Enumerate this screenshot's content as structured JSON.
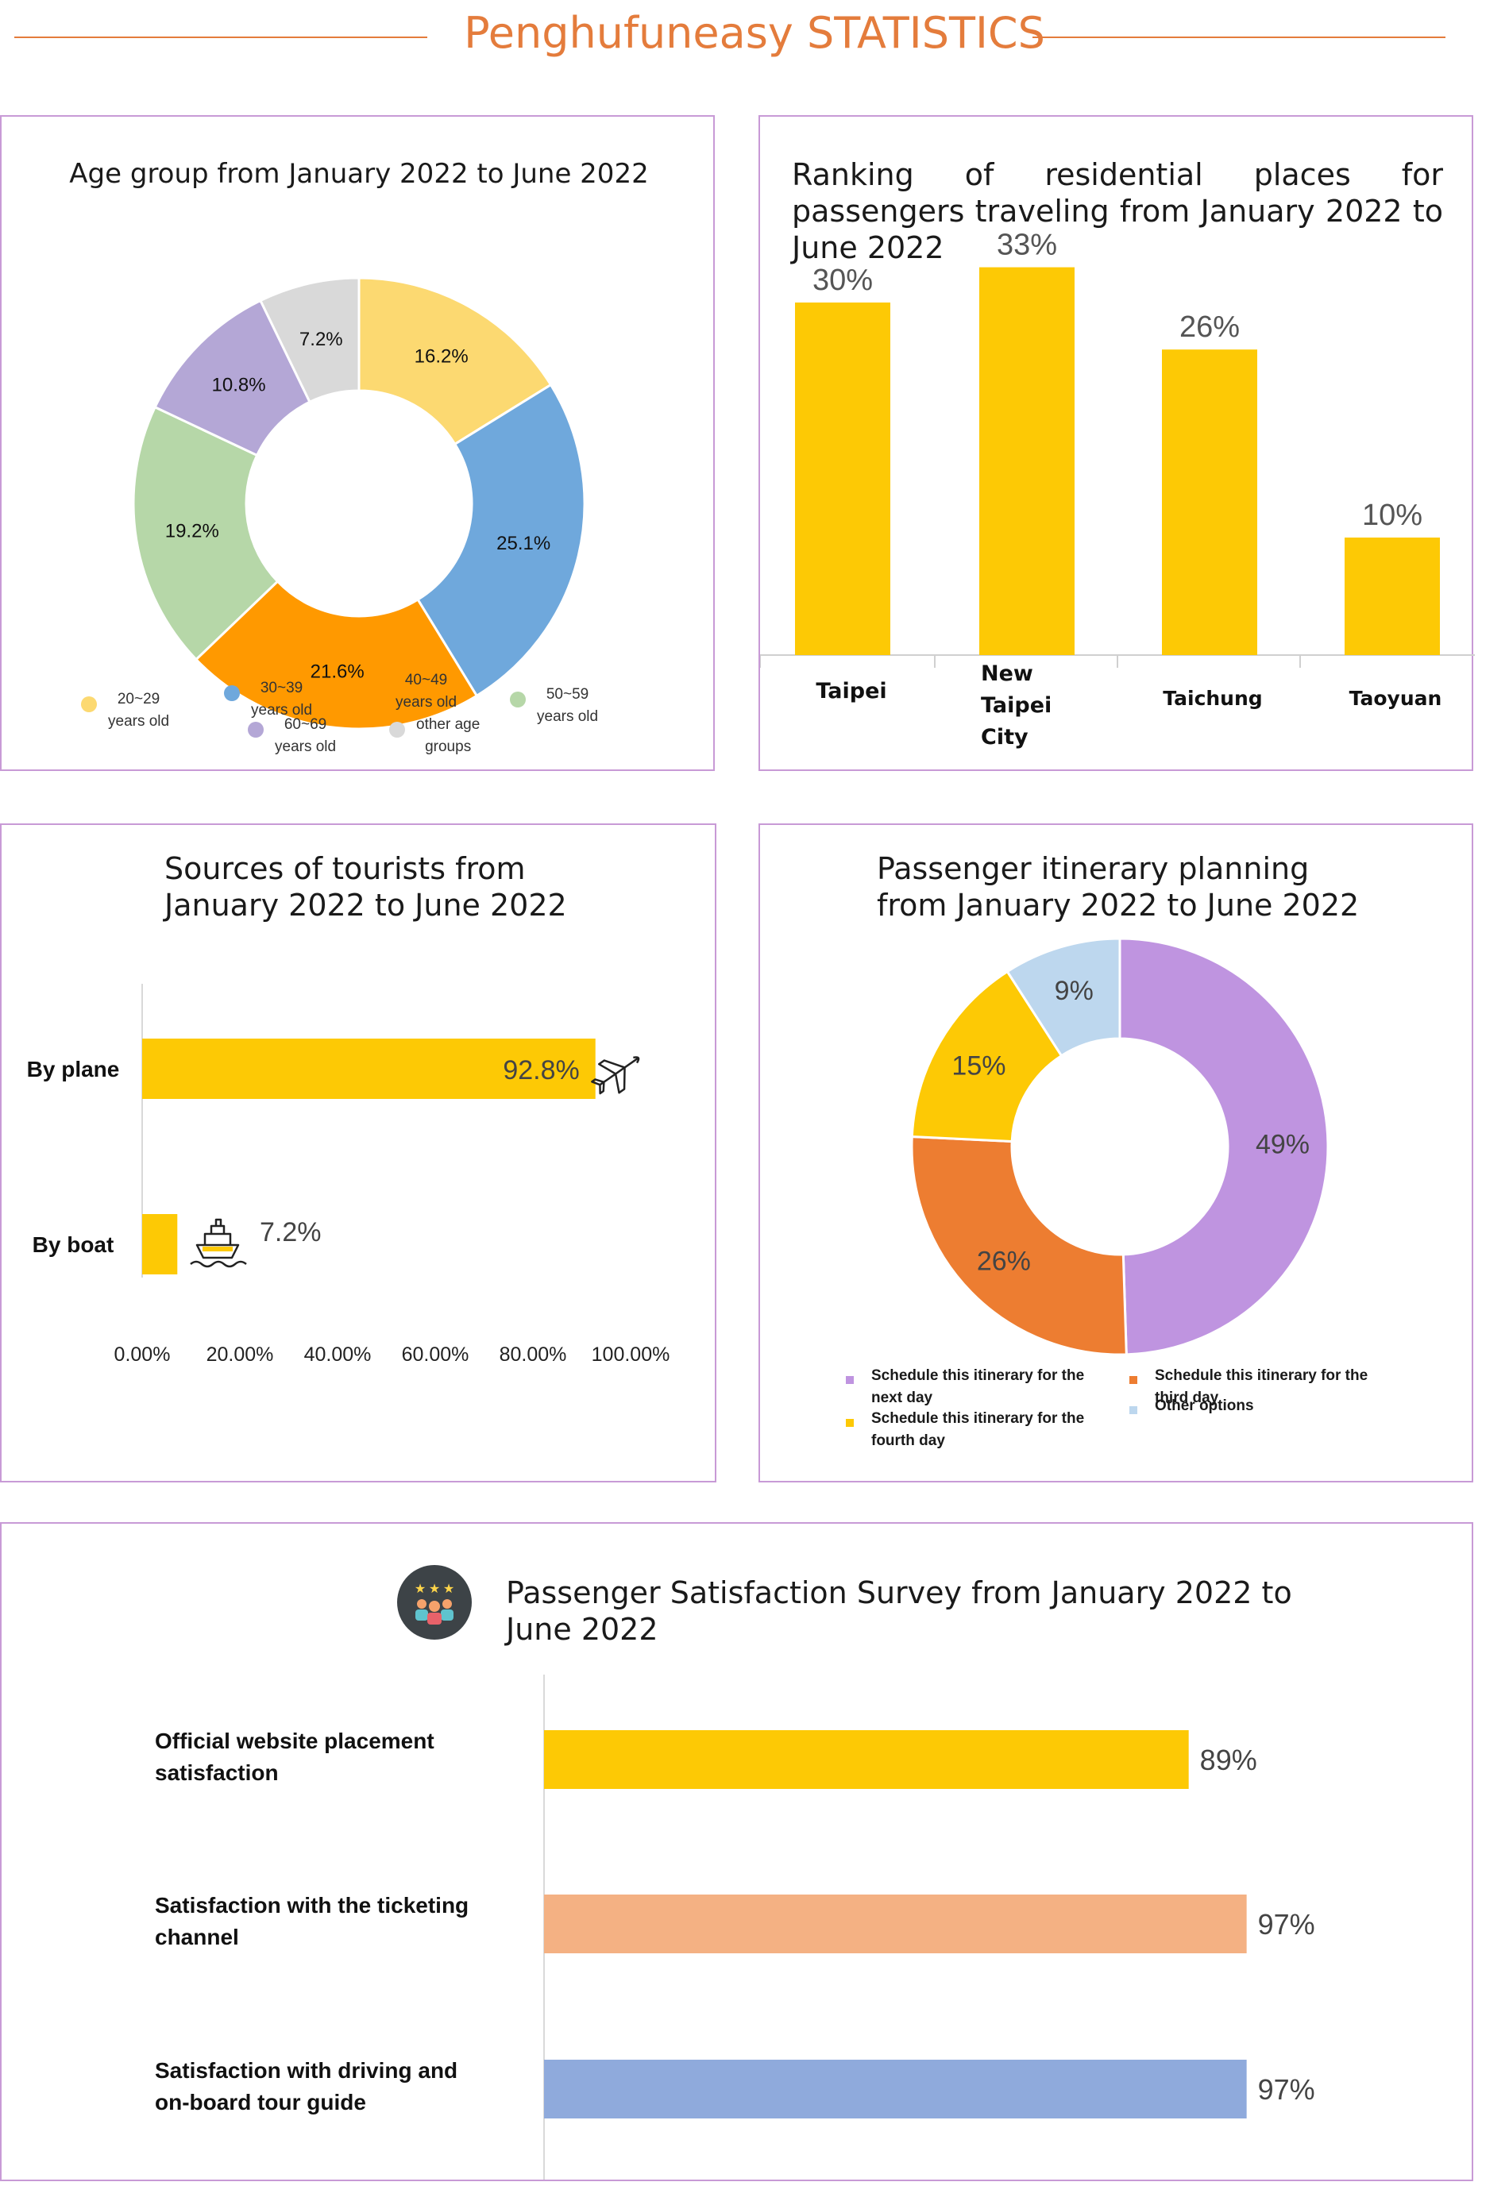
{
  "page": {
    "title": "Penghufuneasy STATISTICS"
  },
  "colors": {
    "accent": "#e47c3c",
    "panel_border": "#c89ad6",
    "bar_yellow": "#fdc905"
  },
  "chart_data": [
    {
      "type": "pie",
      "style": "donut",
      "title": "Age group from January 2022 to June 2022",
      "slices": [
        {
          "label": "20~29 years old",
          "value": 16.2,
          "display": "16.2%",
          "color": "#fcd971"
        },
        {
          "label": "30~39 years old",
          "value": 25.1,
          "display": "25.1%",
          "color": "#6fa8dc"
        },
        {
          "label": "40~49 years old",
          "value": 21.6,
          "display": "21.6%",
          "color": "#ff9900"
        },
        {
          "label": "50~59 years old",
          "value": 19.2,
          "display": "19.2%",
          "color": "#b6d7a8"
        },
        {
          "label": "60~69 years old",
          "value": 10.8,
          "display": "10.8%",
          "color": "#b4a7d6"
        },
        {
          "label": "other age groups",
          "value": 7.2,
          "display": "7.2%",
          "color": "#d9d9d9"
        }
      ],
      "legend": [
        {
          "text": "20~29\nyears old",
          "color": "#fcd971"
        },
        {
          "text": "30~39\nyears old",
          "color": "#6fa8dc"
        },
        {
          "text": "40~49\nyears old",
          "color": "#ff9900"
        },
        {
          "text": "50~59\nyears old",
          "color": "#b6d7a8"
        },
        {
          "text": "60~69\nyears old",
          "color": "#b4a7d6"
        },
        {
          "text": "other age\ngroups",
          "color": "#d9d9d9"
        }
      ]
    },
    {
      "type": "bar",
      "title": "Ranking of residential places for passengers traveling from January 2022 to June 2022",
      "categories": [
        "Taipei",
        "New Taipei City",
        "Taichung",
        "Taoyuan"
      ],
      "values": [
        30,
        33,
        26,
        10
      ],
      "value_labels": [
        "30%",
        "33%",
        "26%",
        "10%"
      ],
      "color": "#fdc905"
    },
    {
      "type": "bar",
      "orientation": "horizontal",
      "title": "Sources of tourists from January 2022 to June 2022",
      "categories": [
        "By plane",
        "By boat"
      ],
      "values": [
        92.8,
        7.2
      ],
      "value_labels": [
        "92.8%",
        "7.2%"
      ],
      "icons": [
        "airplane-icon",
        "ship-icon"
      ],
      "xlim": [
        0,
        100
      ],
      "xticks": [
        "0.00%",
        "20.00%",
        "40.00%",
        "60.00%",
        "80.00%",
        "100.00%"
      ],
      "color": "#fdc905"
    },
    {
      "type": "pie",
      "style": "donut",
      "title": "Passenger itinerary planning from January 2022 to June 2022",
      "slices": [
        {
          "label": "Schedule this itinerary for the next day",
          "value": 49,
          "display": "49%",
          "color": "#bf94e0"
        },
        {
          "label": "Schedule this itinerary for the third day",
          "value": 26,
          "display": "26%",
          "color": "#ed7d31"
        },
        {
          "label": "Schedule this itinerary for the fourth day",
          "value": 15,
          "display": "15%",
          "color": "#fdc905"
        },
        {
          "label": "Other options",
          "value": 9,
          "display": "9%",
          "color": "#bdd7ee"
        }
      ],
      "legend": [
        {
          "text": "Schedule this itinerary for the\nnext day",
          "color": "#bf94e0"
        },
        {
          "text": "Schedule this itinerary for the\nthird  day",
          "color": "#ed7d31"
        },
        {
          "text": "Schedule this itinerary for the\nfourth  day",
          "color": "#fdc905"
        },
        {
          "text": "Other options",
          "color": "#bdd7ee"
        }
      ]
    },
    {
      "type": "bar",
      "orientation": "horizontal",
      "title": "Passenger Satisfaction Survey from January 2022 to June 2022",
      "categories": [
        "Official website placement satisfaction",
        "Satisfaction with the ticketing channel",
        "Satisfaction with driving and on-board tour guide"
      ],
      "values": [
        89,
        97,
        97
      ],
      "value_labels": [
        "89%",
        "97%",
        "97%"
      ],
      "colors": [
        "#fdc905",
        "#f4b183",
        "#8faadc"
      ],
      "icon": "rating-people-icon"
    }
  ]
}
